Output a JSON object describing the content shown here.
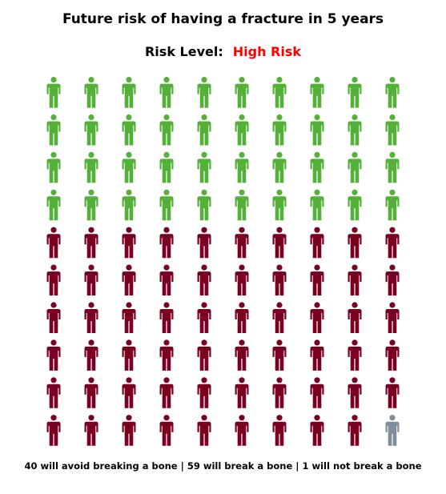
{
  "title": "Future risk of having a fracture in 5 years",
  "risk": {
    "label": "Risk Level:",
    "value": "High Risk",
    "value_color": "#ff0000"
  },
  "chart_data": {
    "type": "pictograph",
    "icon": "person-icon",
    "grid": {
      "rows": 10,
      "cols": 10
    },
    "series": [
      {
        "name": "avoid breaking a bone",
        "value": 40,
        "color": "#55b03a"
      },
      {
        "name": "break a bone",
        "value": 59,
        "color": "#7a0022"
      },
      {
        "name": "not break a bone",
        "value": 1,
        "color": "#7f8c99"
      }
    ]
  },
  "caption": "40 will avoid breaking a bone | 59 will break a bone | 1 will not break a bone"
}
